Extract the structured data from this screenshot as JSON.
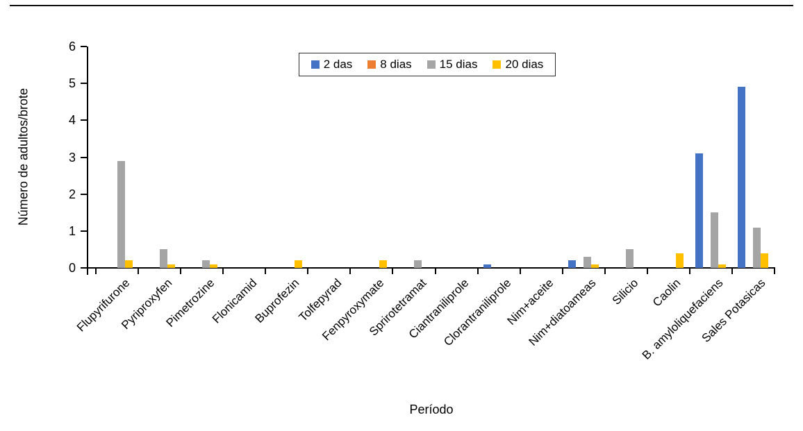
{
  "chart_data": {
    "type": "bar",
    "title": "",
    "xlabel": "Período",
    "ylabel": "Número de adultos/brote",
    "ylim": [
      0,
      6
    ],
    "yticks": [
      0,
      1,
      2,
      3,
      4,
      5,
      6
    ],
    "grid": false,
    "legend_position": "top-center",
    "categories": [
      "Flupyrifurone",
      "Pyriproxyfen",
      "Pimetrozine",
      "Flonicamid",
      "Buprofezin",
      "Tolfepyrad",
      "Fenpyroxymate",
      "Sprirotetramat",
      "Ciantraniliprole",
      "Clorantraniliprole",
      "Nim+aceite",
      "Nim+diatoameas",
      "Silicio",
      "Caolin",
      "B. amyloliquefaciens",
      "Sales Potasicas"
    ],
    "series": [
      {
        "name": "2 das",
        "color": "#4472C4",
        "values": [
          0,
          0,
          0,
          0,
          0,
          0,
          0,
          0,
          0,
          0.1,
          0,
          0.2,
          0,
          0,
          3.1,
          4.9
        ]
      },
      {
        "name": "8 dias",
        "color": "#ED7D31",
        "values": [
          0,
          0,
          0,
          0,
          0,
          0,
          0,
          0,
          0,
          0,
          0,
          0,
          0,
          0,
          0,
          0
        ]
      },
      {
        "name": "15 dias",
        "color": "#A5A5A5",
        "values": [
          2.9,
          0.5,
          0.2,
          0,
          0,
          0,
          0,
          0.2,
          0,
          0,
          0,
          0.3,
          0.5,
          0,
          1.5,
          1.1
        ]
      },
      {
        "name": "20 dias",
        "color": "#FFC000",
        "values": [
          0.2,
          0.1,
          0.1,
          0,
          0.2,
          0,
          0.2,
          0,
          0,
          0,
          0,
          0.1,
          0,
          0.4,
          0.1,
          0.4
        ]
      }
    ],
    "axis_color": "#000000",
    "text_color": "#000000"
  }
}
